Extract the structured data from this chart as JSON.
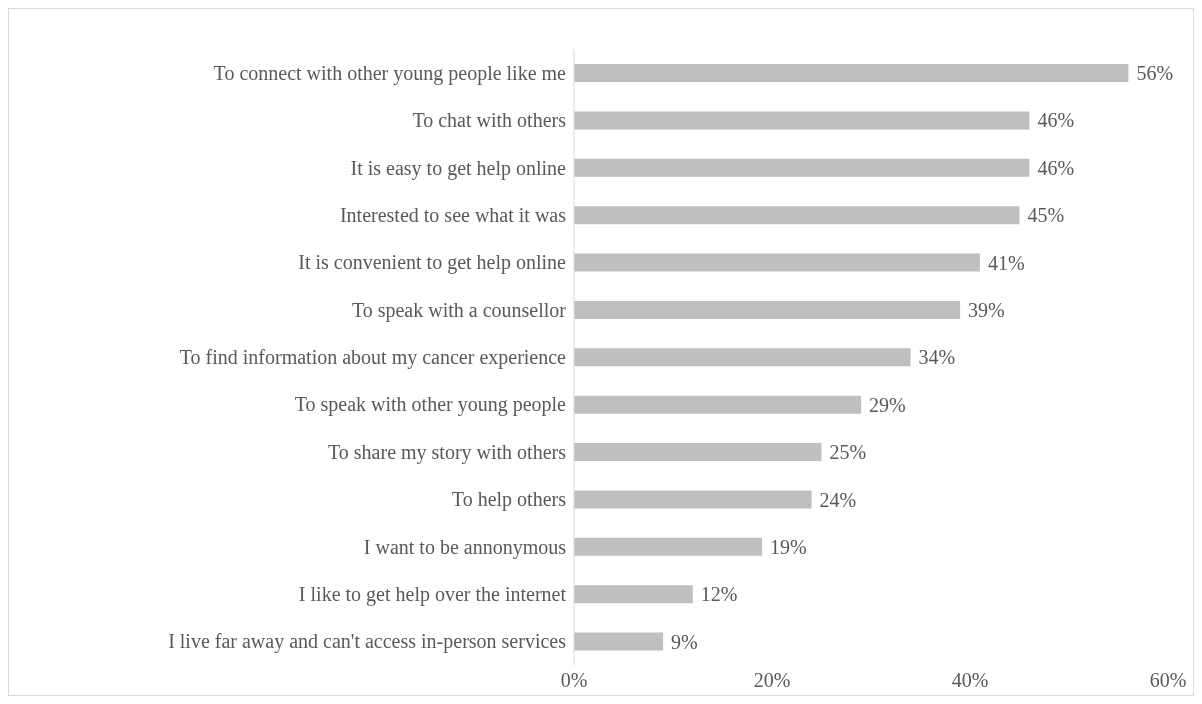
{
  "chart_data": {
    "type": "bar",
    "orientation": "horizontal",
    "categories": [
      "To connect with other young people like me",
      "To chat with others",
      "It is easy to get help online",
      "Interested to see what it was",
      "It is convenient to get help online",
      "To speak with a counsellor",
      "To find information about my cancer experience",
      "To speak with other young people",
      "To share my story with others",
      "To help others",
      "I want to be annonymous",
      "I like to get help over the internet",
      "I live far away and can't access in-person services"
    ],
    "values": [
      56,
      46,
      46,
      45,
      41,
      39,
      34,
      29,
      25,
      24,
      19,
      12,
      9
    ],
    "value_labels": [
      "56%",
      "46%",
      "46%",
      "45%",
      "41%",
      "39%",
      "34%",
      "29%",
      "25%",
      "24%",
      "19%",
      "12%",
      "9%"
    ],
    "color": "#bfbfbf",
    "xlim": [
      0,
      60
    ],
    "xticks": [
      {
        "value": 0,
        "label": "0%"
      },
      {
        "value": 20,
        "label": "20%"
      },
      {
        "value": 40,
        "label": "40%"
      },
      {
        "value": 60,
        "label": "60%"
      }
    ],
    "grid": false,
    "legend": false
  }
}
